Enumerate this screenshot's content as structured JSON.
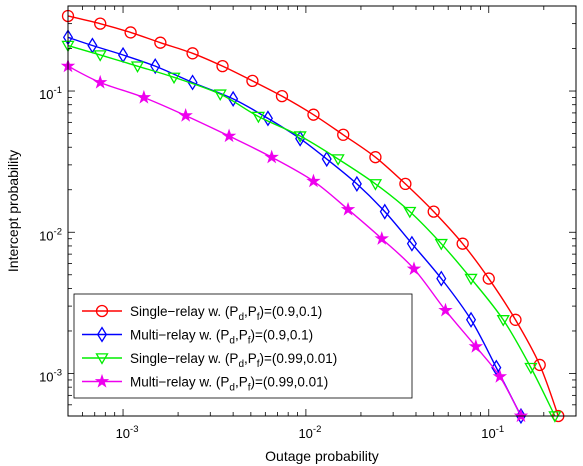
{
  "chart_data": {
    "type": "line",
    "xlabel": "Outage probability",
    "ylabel": "Intercept probability",
    "xscale": "log",
    "yscale": "log",
    "xlim": [
      0.0005,
      0.3
    ],
    "ylim": [
      0.0005,
      0.4
    ],
    "x_ticks": [
      {
        "value": 0.001,
        "base": "10",
        "exp": "-3"
      },
      {
        "value": 0.01,
        "base": "10",
        "exp": "-2"
      },
      {
        "value": 0.1,
        "base": "10",
        "exp": "-1"
      }
    ],
    "y_ticks": [
      {
        "value": 0.001,
        "base": "10",
        "exp": "-3"
      },
      {
        "value": 0.01,
        "base": "10",
        "exp": "-2"
      },
      {
        "value": 0.1,
        "base": "10",
        "exp": "-1"
      }
    ],
    "grid": false,
    "legend_position": "bottom-left",
    "series": [
      {
        "name": "Single−relay w. (Pd,Pf)=(0.9,0.1)",
        "legend": {
          "pre": "Single−relay w. (P",
          "sub1": "d",
          "mid": ",P",
          "sub2": "f",
          "post": ")=(0.9,0.1)"
        },
        "color": "#ff0000",
        "marker": "circle",
        "x": [
          0.0005,
          0.00075,
          0.0011,
          0.0016,
          0.0024,
          0.0035,
          0.0051,
          0.0074,
          0.011,
          0.016,
          0.024,
          0.035,
          0.05,
          0.072,
          0.1,
          0.14,
          0.19,
          0.24
        ],
        "y": [
          0.34,
          0.3,
          0.26,
          0.22,
          0.185,
          0.15,
          0.118,
          0.092,
          0.068,
          0.049,
          0.034,
          0.022,
          0.014,
          0.0083,
          0.0047,
          0.0024,
          0.00115,
          0.0005
        ]
      },
      {
        "name": "Multi−relay w. (Pd,Pf)=(0.9,0.1)",
        "legend": {
          "pre": "Multi−relay w. (P",
          "sub1": "d",
          "mid": ",P",
          "sub2": "f",
          "post": ")=(0.9,0.1)"
        },
        "color": "#0000ff",
        "marker": "diamond",
        "x": [
          0.0005,
          0.00068,
          0.001,
          0.0015,
          0.0024,
          0.004,
          0.0062,
          0.0093,
          0.013,
          0.019,
          0.027,
          0.038,
          0.055,
          0.08,
          0.11,
          0.15
        ],
        "y": [
          0.24,
          0.21,
          0.18,
          0.15,
          0.115,
          0.088,
          0.064,
          0.046,
          0.033,
          0.022,
          0.014,
          0.0083,
          0.0047,
          0.0024,
          0.0011,
          0.0005
        ]
      },
      {
        "name": "Single−relay w. (Pd,Pf)=(0.99,0.01)",
        "legend": {
          "pre": "Single−relay w. (P",
          "sub1": "d",
          "mid": ",P",
          "sub2": "f",
          "post": ")=(0.99,0.01)"
        },
        "color": "#00ee00",
        "marker": "triangle-down",
        "x": [
          0.0005,
          0.00075,
          0.0012,
          0.0019,
          0.0034,
          0.0055,
          0.0093,
          0.015,
          0.024,
          0.037,
          0.055,
          0.08,
          0.12,
          0.17,
          0.23
        ],
        "y": [
          0.21,
          0.18,
          0.15,
          0.125,
          0.095,
          0.066,
          0.048,
          0.033,
          0.022,
          0.014,
          0.0083,
          0.0047,
          0.0024,
          0.0011,
          0.0005
        ]
      },
      {
        "name": "Multi−relay w. (Pd,Pf)=(0.99,0.01)",
        "legend": {
          "pre": "Multi−relay w. (P",
          "sub1": "d",
          "mid": ",P",
          "sub2": "f",
          "post": ")=(0.99,0.01)"
        },
        "color": "#ee00ee",
        "marker": "star",
        "x": [
          0.0005,
          0.00075,
          0.0013,
          0.0022,
          0.0038,
          0.0065,
          0.011,
          0.017,
          0.026,
          0.039,
          0.058,
          0.085,
          0.115,
          0.15
        ],
        "y": [
          0.15,
          0.115,
          0.09,
          0.067,
          0.048,
          0.034,
          0.023,
          0.0145,
          0.009,
          0.0055,
          0.0028,
          0.00155,
          0.00095,
          0.0005
        ]
      }
    ]
  }
}
